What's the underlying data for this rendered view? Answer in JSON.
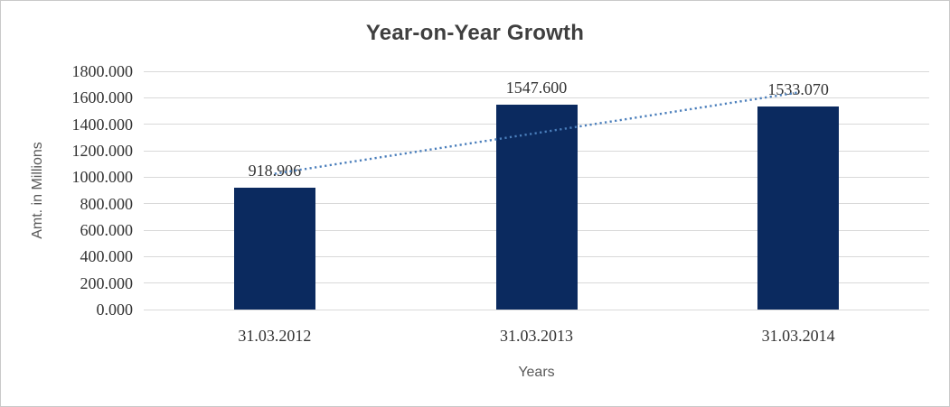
{
  "chart_data": {
    "type": "bar",
    "title": "Year-on-Year Growth",
    "xlabel": "Years",
    "ylabel": "Amt. in Millions",
    "categories": [
      "31.03.2012",
      "31.03.2013",
      "31.03.2014"
    ],
    "series": [
      {
        "name": "Amt. in Millions",
        "values": [
          918.906,
          1547.6,
          1533.07
        ],
        "data_labels": [
          "918.906",
          "1547.600",
          "1533.070"
        ]
      }
    ],
    "ylim": [
      0,
      1800
    ],
    "ytick_step": 200,
    "ytick_labels": [
      "0.000",
      "200.000",
      "400.000",
      "600.000",
      "800.000",
      "1000.000",
      "1200.000",
      "1400.000",
      "1600.000",
      "1800.000"
    ],
    "grid": true,
    "legend": "none",
    "trendline": {
      "type": "linear",
      "style": "dotted"
    },
    "colors": {
      "bar": "#0b2a5f",
      "trendline": "#4a7ebb",
      "gridline": "#d9d9d9",
      "title": "#3f3f3f",
      "tick_label": "#333333",
      "axis_title": "#595959",
      "border": "#c9c9c9",
      "background": "#ffffff"
    }
  }
}
